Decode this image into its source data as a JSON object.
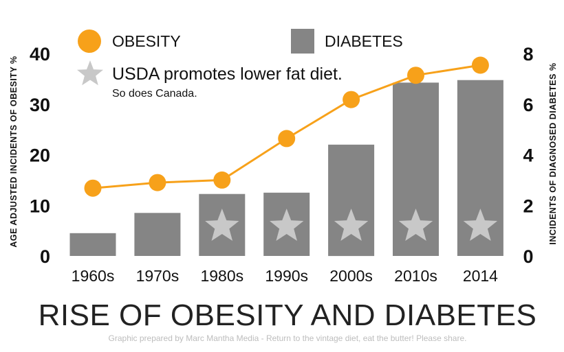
{
  "chart_data": {
    "type": "bar",
    "title": "RISE OF OBESITY AND DIABETES",
    "caption": "Graphic prepared by Marc Mantha Media - Return to the vintage diet, eat the butter!  Please share.",
    "categories": [
      "1960s",
      "1970s",
      "1980s",
      "1990s",
      "2000s",
      "2010s",
      "2014"
    ],
    "y_left": {
      "label": "AGE ADJUSTED INCIDENTS OF OBESITY %",
      "ticks": [
        0,
        10,
        20,
        30,
        40
      ],
      "ylim": [
        0,
        40
      ]
    },
    "y_right": {
      "label": "INCIDENTS OF DIAGNOSED DIABETES %",
      "ticks": [
        0,
        2,
        4,
        6,
        8
      ],
      "ylim": [
        0,
        8
      ]
    },
    "series": [
      {
        "name": "OBESITY",
        "type": "line",
        "axis": "left",
        "color": "#f7a11a",
        "values": [
          13.4,
          14.5,
          15.0,
          23.2,
          30.9,
          35.7,
          37.7
        ]
      },
      {
        "name": "DIABETES",
        "type": "bar",
        "axis": "right",
        "color": "#858585",
        "values": [
          0.9,
          1.7,
          2.45,
          2.5,
          4.4,
          6.85,
          6.95
        ]
      }
    ],
    "markers": {
      "label": "USDA promotes lower fat diet.",
      "sublabel": "So does Canada.",
      "icon": "star-icon",
      "color": "#c8c8c8",
      "categories": [
        "1980s",
        "1990s",
        "2000s",
        "2010s",
        "2014"
      ]
    },
    "legend_position": "top",
    "grid": false
  }
}
